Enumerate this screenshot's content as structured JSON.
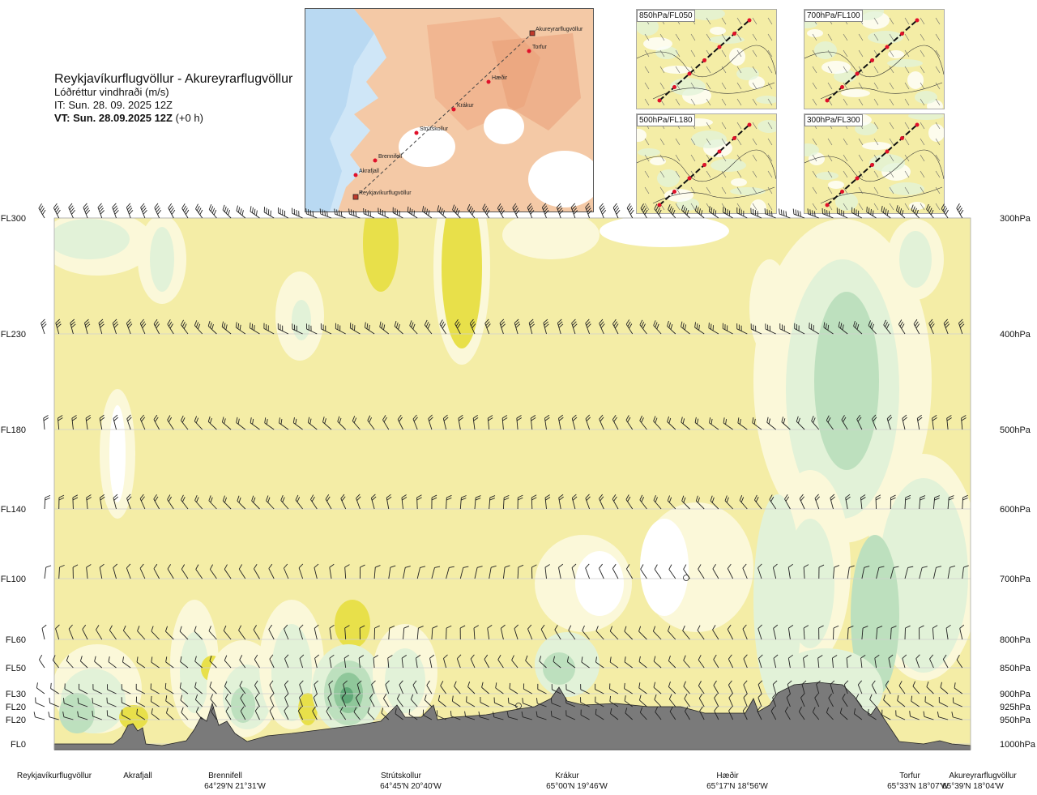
{
  "header": {
    "route": "Reykjavíkurflugvöllur - Akureyrarflugvöllur",
    "variable": "Lóðréttur vindhraði (m/s)",
    "it": "IT: Sun. 28. 09. 2025 12Z",
    "vt_bold": "VT: Sun. 28.09.2025 12Z",
    "vt_rest": " (+0 h)"
  },
  "map": {
    "waypoints": [
      "Akureyrarflugvöllur",
      "Torfur",
      "Hæðir",
      "Krákur",
      "Strútskollur",
      "Brennifell",
      "Akrafjall",
      "Reykjavíkurflugvöllur"
    ]
  },
  "mini_maps": [
    {
      "label": "850hPa/FL050"
    },
    {
      "label": "700hPa/FL100"
    },
    {
      "label": "500hPa/FL180"
    },
    {
      "label": "300hPa/FL300"
    }
  ],
  "colors": {
    "base": "#f4eda6",
    "light_yellow": "#fbf8d9",
    "white": "#ffffff",
    "pale_green": "#e2f2d8",
    "green": "#bde0be",
    "mid_green": "#8fc79a",
    "dark_green": "#5fa877",
    "yellow": "#e8e04a",
    "terrain": "#7a7a7a"
  },
  "chart_data": {
    "type": "heatmap",
    "title": "Reykjavíkurflugvöllur - Akureyrarflugvöllur",
    "variable": "Lóðréttur vindhraði (m/s)",
    "left_axis_labels": [
      "FL300",
      "FL230",
      "FL180",
      "FL140",
      "FL100",
      "FL60",
      "FL50",
      "FL30",
      "FL20",
      "FL20",
      "FL0"
    ],
    "right_axis_labels": [
      "300hPa",
      "400hPa",
      "500hPa",
      "600hPa",
      "700hPa",
      "800hPa",
      "850hPa",
      "900hPa",
      "925hPa",
      "950hPa",
      "1000hPa"
    ],
    "pressure_levels_hPa": [
      300,
      400,
      500,
      600,
      700,
      800,
      850,
      900,
      925,
      950,
      1000
    ],
    "ylim_hPa": [
      1000,
      300
    ],
    "locations": [
      {
        "name": "Reykjavíkurflugvöllur",
        "coord": ""
      },
      {
        "name": "Akrafjall",
        "coord": ""
      },
      {
        "name": "Brennifell",
        "coord": "64°29'N 21°31'W"
      },
      {
        "name": "Strútskollur",
        "coord": "64°45'N 20°40'W"
      },
      {
        "name": "Krákur",
        "coord": "65°00'N 19°46'W"
      },
      {
        "name": "Hæðir",
        "coord": "65°17'N 18°56'W"
      },
      {
        "name": "Torfur",
        "coord": "65°33'N 18°07'W"
      },
      {
        "name": "Akureyrarflugvöllur",
        "coord": "65°39'N 18°04'W"
      }
    ]
  }
}
